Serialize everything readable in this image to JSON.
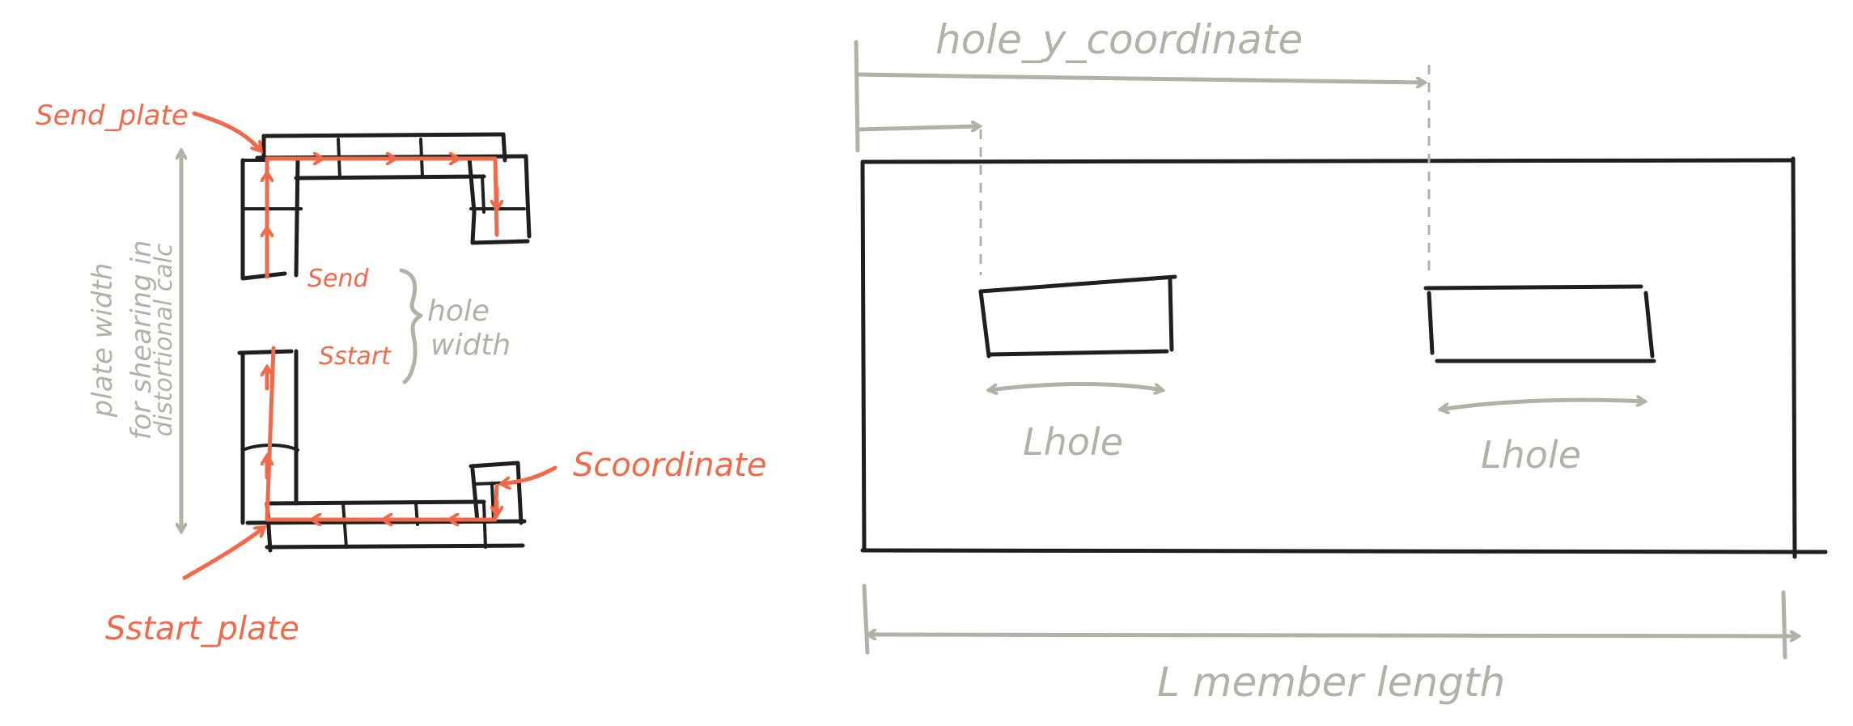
{
  "colors": {
    "ink": "#1f1f1f",
    "accent_orange": "#f2694a",
    "annotation_grey": "#b3b0a6",
    "background": "#ffffff"
  },
  "left_figure": {
    "label_s_end_plate": "Send_plate",
    "label_s_end": "Send",
    "label_s_start": "Sstart",
    "label_hole_width_1": "hole",
    "label_hole_width_2": "width",
    "label_s_coordinate": "Scoordinate",
    "label_s_start_plate": "Sstart_plate",
    "label_plate_width_1": "plate width",
    "label_plate_width_2": "for shearing in",
    "label_plate_width_3": "distortional calc"
  },
  "right_figure": {
    "label_hole_y_coordinate": "hole_y_coordinate",
    "label_l_hole_left": "Lhole",
    "label_l_hole_right": "Lhole",
    "label_member_length": "L member length"
  }
}
